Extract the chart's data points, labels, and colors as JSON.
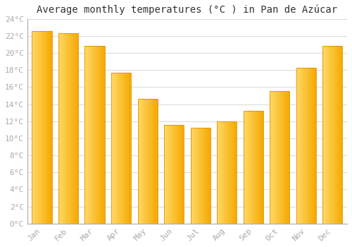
{
  "title": "Average monthly temperatures (°C ) in Pan de Azúcar",
  "months": [
    "Jan",
    "Feb",
    "Mar",
    "Apr",
    "May",
    "Jun",
    "Jul",
    "Aug",
    "Sep",
    "Oct",
    "Nov",
    "Dec"
  ],
  "values": [
    22.6,
    22.3,
    20.8,
    17.7,
    14.6,
    11.6,
    11.2,
    12.0,
    13.2,
    15.5,
    18.3,
    20.8
  ],
  "bar_color_light": "#FFD966",
  "bar_color_dark": "#F5A800",
  "bar_color_edge": "#E09000",
  "ylim": [
    0,
    24
  ],
  "yticks": [
    0,
    2,
    4,
    6,
    8,
    10,
    12,
    14,
    16,
    18,
    20,
    22,
    24
  ],
  "background_color": "#FFFFFF",
  "grid_color": "#DDDDDD",
  "title_fontsize": 10,
  "tick_fontsize": 8,
  "tick_color": "#AAAAAA",
  "font_family": "monospace",
  "bar_width": 0.75
}
